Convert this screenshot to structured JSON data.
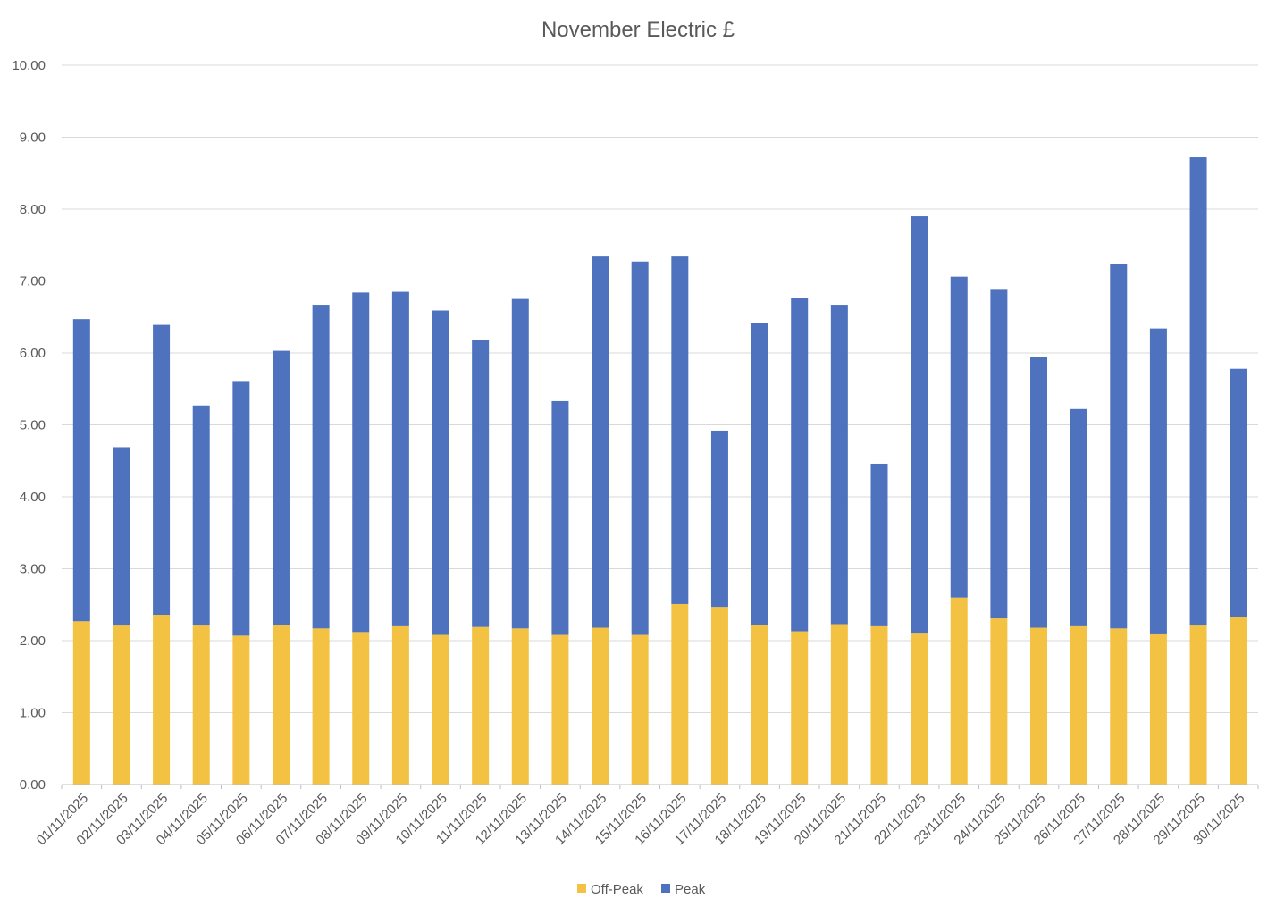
{
  "chart_data": {
    "type": "bar",
    "stacked": true,
    "title": "November Electric £",
    "xlabel": "",
    "ylabel": "",
    "ylim": [
      0,
      10
    ],
    "yticks": [
      "0.00",
      "1.00",
      "2.00",
      "3.00",
      "4.00",
      "5.00",
      "6.00",
      "7.00",
      "8.00",
      "9.00",
      "10.00"
    ],
    "grid": true,
    "legend_position": "bottom",
    "categories": [
      "01/11/2025",
      "02/11/2025",
      "03/11/2025",
      "04/11/2025",
      "05/11/2025",
      "06/11/2025",
      "07/11/2025",
      "08/11/2025",
      "09/11/2025",
      "10/11/2025",
      "11/11/2025",
      "12/11/2025",
      "13/11/2025",
      "14/11/2025",
      "15/11/2025",
      "16/11/2025",
      "17/11/2025",
      "18/11/2025",
      "19/11/2025",
      "20/11/2025",
      "21/11/2025",
      "22/11/2025",
      "23/11/2025",
      "24/11/2025",
      "25/11/2025",
      "26/11/2025",
      "27/11/2025",
      "28/11/2025",
      "29/11/2025",
      "30/11/2025"
    ],
    "series": [
      {
        "name": "Off-Peak",
        "color": "#f4c242",
        "values": [
          2.27,
          2.21,
          2.36,
          2.21,
          2.07,
          2.22,
          2.17,
          2.12,
          2.2,
          2.08,
          2.19,
          2.17,
          2.08,
          2.18,
          2.08,
          2.51,
          2.47,
          2.22,
          2.13,
          2.23,
          2.2,
          2.11,
          2.6,
          2.31,
          2.18,
          2.2,
          2.17,
          2.1,
          2.21,
          2.33
        ]
      },
      {
        "name": "Peak",
        "color": "#4e72be",
        "values": [
          4.2,
          2.48,
          4.03,
          3.06,
          3.54,
          3.81,
          4.5,
          4.72,
          4.65,
          4.51,
          3.99,
          4.58,
          3.25,
          5.16,
          5.19,
          4.83,
          2.45,
          4.2,
          4.63,
          4.44,
          2.26,
          5.79,
          4.46,
          4.58,
          3.77,
          3.02,
          5.07,
          4.24,
          6.51,
          3.45
        ]
      }
    ]
  }
}
